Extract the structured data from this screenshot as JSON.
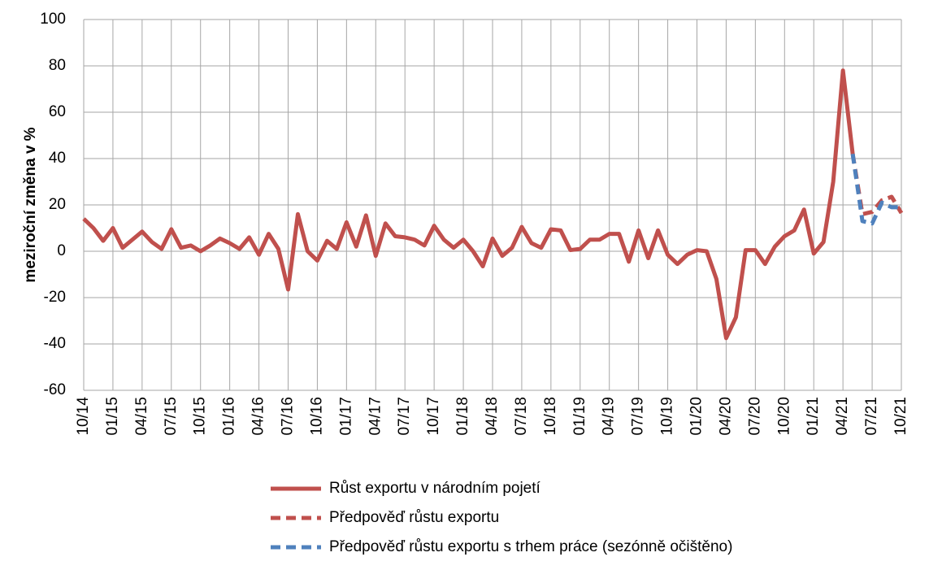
{
  "chart_data": {
    "type": "line",
    "ylabel": "meziroční změna v %",
    "categories": [
      "10/14",
      null,
      null,
      "01/15",
      null,
      null,
      "04/15",
      null,
      null,
      "07/15",
      null,
      null,
      "10/15",
      null,
      null,
      "01/16",
      null,
      null,
      "04/16",
      null,
      null,
      "07/16",
      null,
      null,
      "10/16",
      null,
      null,
      "01/17",
      null,
      null,
      "04/17",
      null,
      null,
      "07/17",
      null,
      null,
      "10/17",
      null,
      null,
      "01/18",
      null,
      null,
      "04/18",
      null,
      null,
      "07/18",
      null,
      null,
      "10/18",
      null,
      null,
      "01/19",
      null,
      null,
      "04/19",
      null,
      null,
      "07/19",
      null,
      null,
      "10/19",
      null,
      null,
      "01/20",
      null,
      null,
      "04/20",
      null,
      null,
      "07/20",
      null,
      null,
      "10/20",
      null,
      null,
      "01/21",
      null,
      null,
      "04/21",
      null,
      null,
      "07/21",
      null,
      null,
      "10/21"
    ],
    "series": [
      {
        "name": "Růst exportu v národním pojetí",
        "color": "#c0504d",
        "dash": false,
        "values": [
          14,
          10,
          4.5,
          10,
          1.5,
          5,
          8.5,
          4,
          1,
          9.5,
          1.5,
          2.5,
          0,
          2.5,
          5.5,
          3.5,
          1,
          6,
          -1.5,
          7.5,
          1,
          -16.5,
          16,
          0,
          -4,
          4.5,
          1,
          12.5,
          2,
          15.5,
          -2,
          12,
          6.5,
          6,
          5,
          2.5,
          11,
          5,
          1.5,
          5,
          0,
          -6.5,
          5.5,
          -2,
          1.5,
          10.5,
          3.5,
          1.5,
          9.5,
          9,
          0.5,
          1,
          5,
          5,
          7.5,
          7.5,
          -4.5,
          9,
          -3,
          9,
          -1.5,
          -5.5,
          -1.5,
          0.5,
          0,
          -12,
          -37.5,
          -28.5,
          0.5,
          0.5,
          -5.5,
          2,
          6.5,
          9,
          18,
          -1,
          4,
          30,
          78,
          42,
          null,
          null,
          null,
          null,
          null
        ]
      },
      {
        "name": "Předpověď růstu exportu",
        "color": "#c0504d",
        "dash": true,
        "values": [
          null,
          null,
          null,
          null,
          null,
          null,
          null,
          null,
          null,
          null,
          null,
          null,
          null,
          null,
          null,
          null,
          null,
          null,
          null,
          null,
          null,
          null,
          null,
          null,
          null,
          null,
          null,
          null,
          null,
          null,
          null,
          null,
          null,
          null,
          null,
          null,
          null,
          null,
          null,
          null,
          null,
          null,
          null,
          null,
          null,
          null,
          null,
          null,
          null,
          null,
          null,
          null,
          null,
          null,
          null,
          null,
          null,
          null,
          null,
          null,
          null,
          null,
          null,
          null,
          null,
          null,
          null,
          null,
          null,
          null,
          null,
          null,
          null,
          null,
          null,
          null,
          null,
          null,
          null,
          42,
          16,
          17,
          22,
          23.5,
          16.5
        ]
      },
      {
        "name": "Předpověď růstu exportu s trhem práce (sezónně očištěno)",
        "color": "#4f81bd",
        "dash": true,
        "values": [
          null,
          null,
          null,
          null,
          null,
          null,
          null,
          null,
          null,
          null,
          null,
          null,
          null,
          null,
          null,
          null,
          null,
          null,
          null,
          null,
          null,
          null,
          null,
          null,
          null,
          null,
          null,
          null,
          null,
          null,
          null,
          null,
          null,
          null,
          null,
          null,
          null,
          null,
          null,
          null,
          null,
          null,
          null,
          null,
          null,
          null,
          null,
          null,
          null,
          null,
          null,
          null,
          null,
          null,
          null,
          null,
          null,
          null,
          null,
          null,
          null,
          null,
          null,
          null,
          null,
          null,
          null,
          null,
          null,
          null,
          null,
          null,
          null,
          null,
          null,
          null,
          null,
          null,
          null,
          42,
          13,
          12,
          21,
          19,
          19
        ]
      }
    ],
    "ylim": [
      -60,
      100
    ],
    "yticks": [
      -60,
      -40,
      -20,
      0,
      20,
      40,
      60,
      80,
      100
    ],
    "grid": true
  }
}
